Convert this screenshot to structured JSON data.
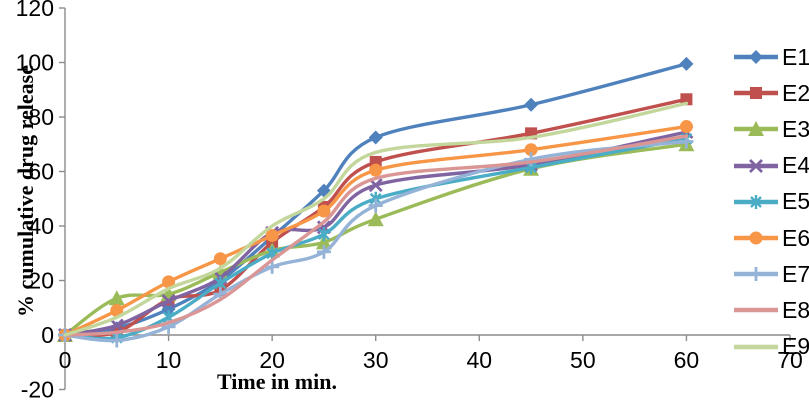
{
  "chart_data": {
    "type": "line",
    "title": "",
    "xlabel": "Time in min.",
    "ylabel": "% cumulative drug release",
    "x": [
      0,
      5,
      10,
      15,
      20,
      25,
      30,
      45,
      60
    ],
    "xlim": [
      0,
      70
    ],
    "ylim": [
      -20,
      120
    ],
    "x_ticks": [
      0,
      10,
      20,
      30,
      40,
      50,
      60,
      70
    ],
    "y_ticks": [
      -20,
      0,
      20,
      40,
      60,
      80,
      100,
      120
    ],
    "grid": false,
    "legend_position": "right",
    "axis_color": "#8c8c8c",
    "series": [
      {
        "name": "E1",
        "color": "#4F81BD",
        "marker": "diamond",
        "values": [
          0,
          2.5,
          9.5,
          20,
          36,
          53,
          72.5,
          84.5,
          99.5
        ]
      },
      {
        "name": "E2",
        "color": "#C0504D",
        "marker": "square",
        "values": [
          0,
          1,
          13,
          16.5,
          34,
          47,
          63.5,
          74,
          86.5
        ]
      },
      {
        "name": "E3",
        "color": "#9BBB59",
        "marker": "triangle",
        "values": [
          0,
          13.5,
          15,
          23,
          31,
          34,
          42.5,
          61,
          70
        ]
      },
      {
        "name": "E4",
        "color": "#8064A2",
        "marker": "x",
        "values": [
          0,
          3.5,
          12.5,
          21,
          37.5,
          39.5,
          55,
          62.5,
          74.5
        ]
      },
      {
        "name": "E5",
        "color": "#4BACC6",
        "marker": "asterisk",
        "values": [
          0,
          -1,
          6.5,
          19,
          30,
          37,
          50,
          61.5,
          72
        ]
      },
      {
        "name": "E6",
        "color": "#F79646",
        "marker": "circle",
        "values": [
          0,
          9,
          19.5,
          28,
          36.5,
          45.5,
          60.5,
          68,
          76.5
        ]
      },
      {
        "name": "E7",
        "color": "#95B3D7",
        "marker": "plus",
        "values": [
          0,
          -2,
          3,
          15,
          25,
          30.5,
          47.5,
          64.5,
          71
        ]
      },
      {
        "name": "E8",
        "color": "#D99694",
        "marker": "none",
        "values": [
          0,
          1,
          4.5,
          13,
          27.5,
          41.5,
          57.5,
          63.5,
          73
        ]
      },
      {
        "name": "E9",
        "color": "#C3D69B",
        "marker": "none",
        "values": [
          0,
          6.5,
          17,
          24.5,
          40,
          50,
          67,
          72.5,
          85
        ]
      }
    ]
  }
}
